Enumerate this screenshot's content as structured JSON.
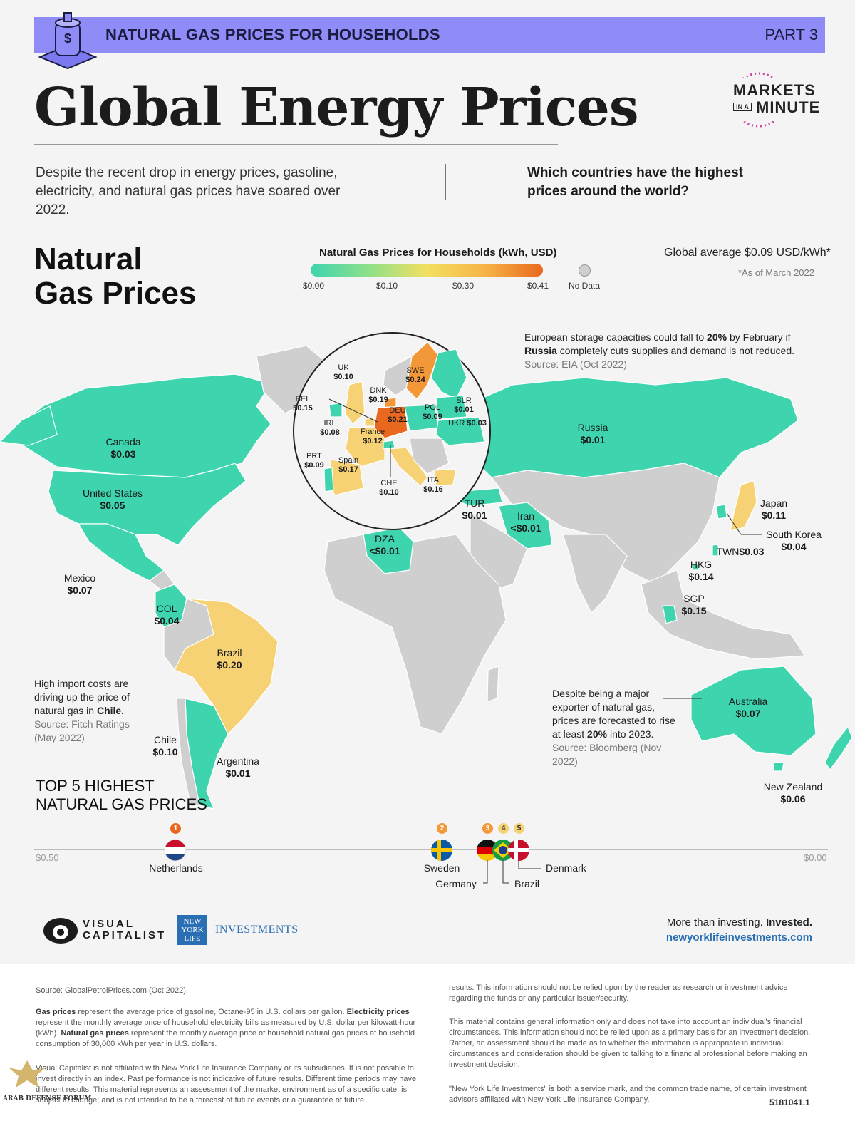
{
  "header": {
    "bar_title": "NATURAL GAS PRICES FOR HOUSEHOLDS",
    "part": "PART 3",
    "main_title": "Global Energy Prices",
    "brand_line1": "MARKETS",
    "brand_line2a": "IN A",
    "brand_line2b": "MINUTE",
    "intro": "Despite the recent drop in energy prices, gasoline, electricity, and natural gas prices have soared over 2022.",
    "question": "Which countries have the highest prices around the world?"
  },
  "section": {
    "title_line1": "Natural",
    "title_line2": "Gas Prices"
  },
  "legend": {
    "title": "Natural Gas Prices for Households (kWh, USD)",
    "ticks": [
      "$0.00",
      "$0.10",
      "$0.30",
      "$0.41"
    ],
    "no_data": "No Data",
    "global_average": "Global average $0.09 USD/kWh*",
    "as_of": "*As of March 2022"
  },
  "colors": {
    "band": "#8f8cf7",
    "low": "#3ed4ae",
    "mid": "#f7d274",
    "high": "#e8681f",
    "no_data": "#cfcfcf"
  },
  "countries": [
    {
      "name": "Canada",
      "price": "$0.03"
    },
    {
      "name": "United States",
      "price": "$0.05"
    },
    {
      "name": "Mexico",
      "price": "$0.07"
    },
    {
      "name": "COL",
      "price": "$0.04"
    },
    {
      "name": "Brazil",
      "price": "$0.20"
    },
    {
      "name": "Chile",
      "price": "$0.10"
    },
    {
      "name": "Argentina",
      "price": "$0.01"
    },
    {
      "name": "Russia",
      "price": "$0.01"
    },
    {
      "name": "TUR",
      "price": "$0.01"
    },
    {
      "name": "Iran",
      "price": "<$0.01"
    },
    {
      "name": "DZA",
      "price": "<$0.01"
    },
    {
      "name": "Japan",
      "price": "$0.11"
    },
    {
      "name": "South Korea",
      "price": "$0.04"
    },
    {
      "name": "TWN",
      "price": "$0.03"
    },
    {
      "name": "HKG",
      "price": "$0.14"
    },
    {
      "name": "SGP",
      "price": "$0.15"
    },
    {
      "name": "Australia",
      "price": "$0.07"
    },
    {
      "name": "New Zealand",
      "price": "$0.06"
    }
  ],
  "europe": [
    {
      "name": "UK",
      "price": "$0.10"
    },
    {
      "name": "SWE",
      "price": "$0.24"
    },
    {
      "name": "DNK",
      "price": "$0.19"
    },
    {
      "name": "BEL",
      "price": "$0.15"
    },
    {
      "name": "BLR",
      "price": "$0.01"
    },
    {
      "name": "POL",
      "price": "$0.09"
    },
    {
      "name": "DEU",
      "price": "$0.21"
    },
    {
      "name": "IRL",
      "price": "$0.08"
    },
    {
      "name": "UKR",
      "price": "$0.03"
    },
    {
      "name": "France",
      "price": "$0.12"
    },
    {
      "name": "PRT",
      "price": "$0.09"
    },
    {
      "name": "Spain",
      "price": "$0.17"
    },
    {
      "name": "CHE",
      "price": "$0.10"
    },
    {
      "name": "ITA",
      "price": "$0.16"
    }
  ],
  "notes": {
    "europe_a": "European storage capacities could fall to ",
    "europe_b": "20%",
    "europe_c": " by February if ",
    "europe_d": "Russia",
    "europe_e": " completely cuts supplies and demand is not reduced.",
    "europe_src": "Source: EIA (Oct 2022)",
    "chile_a": "High import costs are driving up the price of natural gas in ",
    "chile_b": "Chile.",
    "chile_src": "Source: Fitch Ratings (May 2022)",
    "aus_a": "Despite being a major exporter of natural gas, prices are forecasted to rise at least ",
    "aus_b": "20%",
    "aus_c": " into 2023.",
    "aus_src": "Source: Bloomberg (Nov 2022)"
  },
  "top5": {
    "title_line1": "TOP 5 HIGHEST",
    "title_line2": "NATURAL GAS PRICES",
    "scale_left": "$0.50",
    "scale_right": "$0.00",
    "ranks": [
      {
        "rank": "1",
        "name": "Netherlands"
      },
      {
        "rank": "2",
        "name": "Sweden"
      },
      {
        "rank": "3",
        "name": "Germany"
      },
      {
        "rank": "4",
        "name": "Brazil"
      },
      {
        "rank": "5",
        "name": "Denmark"
      }
    ]
  },
  "footer": {
    "vc_line1": "VISUAL",
    "vc_line2": "CAPITALIST",
    "nyl_l1": "NEW",
    "nyl_l2": "YORK",
    "nyl_l3": "LIFE",
    "nyl_inv": "INVESTMENTS",
    "tagline_a": "More than investing. ",
    "tagline_b": "Invested.",
    "url": "newyorklifeinvestments.com",
    "source": "Source: GlobalPetrolPrices.com (Oct 2022).",
    "def_gas_b": "Gas prices",
    "def_gas": " represent the average price of gasoline, Octane-95 in U.S. dollars per gallon. ",
    "def_elec_b": "Electricity prices",
    "def_elec": " represent the monthly average price of household electricity bills as measured by U.S. dollar per kilowatt-hour (kWh). ",
    "def_ng_b": "Natural gas prices",
    "def_ng": " represent the monthly average price of household natural gas prices at household consumption of 30,000 kWh per year in U.S. dollars.",
    "disclaimer1": "Visual Capitalist is not affiliated with New York Life Insurance Company or its subsidiaries. It is not possible to invest directly in an index. Past performance is not indicative of future results. Different time periods may have different results. This material represents an assessment of the market environment as of a specific date; is subject to change; and is not intended to be a forecast of future events or a guarantee of future",
    "disclaimer2": "results. This information should not be relied upon by the reader as research or investment advice regarding the funds or any particular issuer/security.",
    "disclaimer3": "This material contains general information only and does not take into account an individual's financial circumstances. This information should not be relied upon as a primary basis for an investment decision. Rather, an assessment should be made as to whether the information is appropriate in individual circumstances and consideration should be given to talking to a financial professional before making an investment decision.",
    "disclaimer4": "\"New York Life Investments\" is both a service mark, and the common trade name, of certain investment advisors affiliated with New York Life Insurance Company.",
    "code": "5181041.1",
    "watermark": "ARAB DEFENSE FORUM"
  }
}
